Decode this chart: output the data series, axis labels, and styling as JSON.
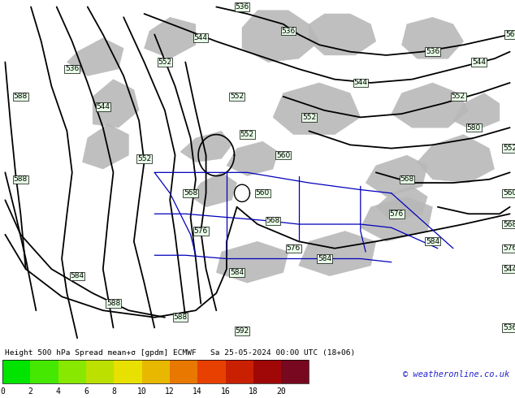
{
  "title": "Height 500 hPa Spread mean+σ [gpdm] ECMWF   Sa 25-05-2024 00:00 UTC (18+06)",
  "copyright": "© weatheronline.co.uk",
  "colorbar_values": [
    0,
    2,
    4,
    6,
    8,
    10,
    12,
    14,
    16,
    18,
    20
  ],
  "colorbar_colors": [
    "#00e400",
    "#44e800",
    "#88e800",
    "#bce000",
    "#e8e000",
    "#e8b800",
    "#e87800",
    "#e84000",
    "#c82000",
    "#a00808",
    "#780820"
  ],
  "bg_color": "#00dd00",
  "map_color": "#b8b8b8",
  "contour_color": "#000000",
  "blue_color": "#0000bb",
  "title_color": "#000000",
  "fig_bg": "#ffffff",
  "label_bg": "#e8ffe8",
  "label_border": "#000000"
}
